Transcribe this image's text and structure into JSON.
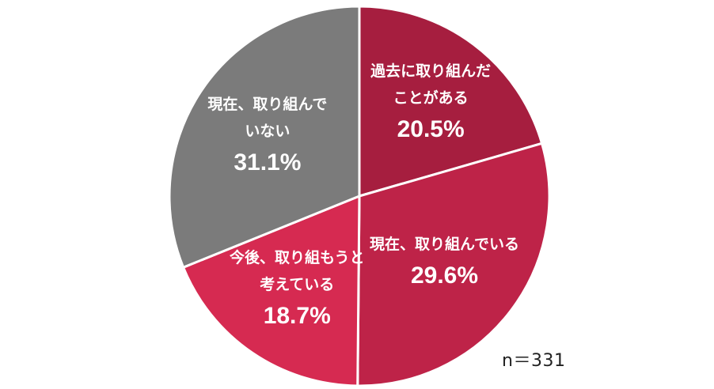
{
  "chart_data": {
    "type": "pie",
    "title": "",
    "slices": [
      {
        "label": "過去に取り組んだ\nことがある",
        "value": 20.5,
        "display": "20.5%",
        "color": "#a61e3f"
      },
      {
        "label": "現在、取り組んでいる",
        "value": 29.6,
        "display": "29.6%",
        "color": "#be2348"
      },
      {
        "label": "今後、取り組もうと\n考えている",
        "value": 18.7,
        "display": "18.7%",
        "color": "#d62a51"
      },
      {
        "label": "現在、取り組んで\nいない",
        "value": 31.1,
        "display": "31.1%",
        "color": "#7b7b7b"
      }
    ],
    "start": "12 o'clock",
    "direction": "clockwise",
    "legend": "none",
    "note": "n＝331"
  }
}
